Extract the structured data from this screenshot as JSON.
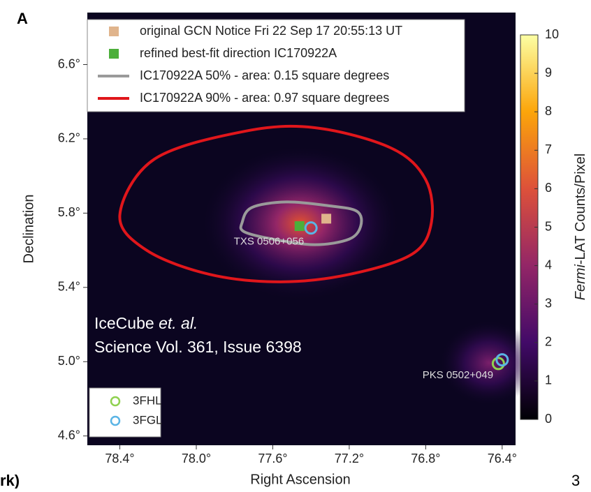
{
  "panel_label": "A",
  "fragments": {
    "left": "rk)",
    "right": "3"
  },
  "chart_data": {
    "type": "skymap",
    "x_label": "Right Ascension",
    "y_label": "Declination",
    "xlim": [
      78.57,
      76.33
    ],
    "ylim": [
      4.55,
      6.88
    ],
    "xticks": [
      {
        "value": 78.4,
        "label": "78.4°"
      },
      {
        "value": 78.0,
        "label": "78.0°"
      },
      {
        "value": 77.6,
        "label": "77.6°"
      },
      {
        "value": 77.2,
        "label": "77.2°"
      },
      {
        "value": 76.8,
        "label": "76.8°"
      },
      {
        "value": 76.4,
        "label": "76.4°"
      }
    ],
    "yticks": [
      {
        "value": 6.6,
        "label": "6.6°"
      },
      {
        "value": 6.2,
        "label": "6.2°"
      },
      {
        "value": 5.8,
        "label": "5.8°"
      },
      {
        "value": 5.4,
        "label": "5.4°"
      },
      {
        "value": 5.0,
        "label": "5.0°"
      },
      {
        "value": 4.6,
        "label": "4.6°"
      }
    ],
    "colorbar": {
      "label_italic": "Fermi",
      "label_rest": "-LAT Counts/Pixel",
      "lim": [
        0,
        10
      ],
      "ticks": [
        0,
        1,
        2,
        3,
        4,
        5,
        6,
        7,
        8,
        9,
        10
      ],
      "colormap": [
        "#000004",
        "#420a68",
        "#932667",
        "#dd513a",
        "#fca50a",
        "#fcffa4"
      ]
    },
    "markers": [
      {
        "name": "original GCN Notice Fri 22 Sep 17 20:55:13 UT",
        "color": "#e0b48c",
        "x": 77.32,
        "y": 5.77
      },
      {
        "name": "refined best-fit direction IC170922A",
        "color": "#4caf3a",
        "x": 77.46,
        "y": 5.73
      }
    ],
    "contours": [
      {
        "name": "IC170922A 50% - area: 0.15 square degrees",
        "color": "#9a9a9a",
        "x": [
          77.76,
          77.71,
          77.53,
          77.31,
          77.16,
          77.14,
          77.2,
          77.38,
          77.6,
          77.75
        ],
        "y": [
          5.75,
          5.83,
          5.86,
          5.84,
          5.81,
          5.73,
          5.66,
          5.63,
          5.66,
          5.7
        ]
      },
      {
        "name": "IC170922A 90% - area: 0.97 square degrees",
        "color": "#e0161b",
        "x": [
          78.4,
          78.22,
          77.75,
          77.38,
          76.98,
          76.8,
          76.77,
          76.87,
          77.2,
          77.56,
          77.93,
          78.26
        ],
        "y": [
          5.79,
          6.09,
          6.24,
          6.26,
          6.15,
          5.98,
          5.75,
          5.58,
          5.47,
          5.43,
          5.47,
          5.6
        ]
      }
    ],
    "catalogs": [
      {
        "name": "3FHL",
        "color": "#8fd14f",
        "x": [
          76.42
        ],
        "y": [
          4.99
        ]
      },
      {
        "name": "3FGL",
        "color": "#5ab4e5",
        "x": [
          77.4,
          76.4
        ],
        "y": [
          5.72,
          5.01
        ]
      }
    ],
    "sources": [
      {
        "name": "TXS 0506+056",
        "x": 77.4,
        "y": 5.72
      },
      {
        "name": "PKS 0502+049",
        "x": 76.41,
        "y": 5.0
      }
    ],
    "annotation": {
      "line1": "IceCube ",
      "line1_italic": "et. al.",
      "line2": "Science Vol. 361, Issue 6398"
    }
  }
}
